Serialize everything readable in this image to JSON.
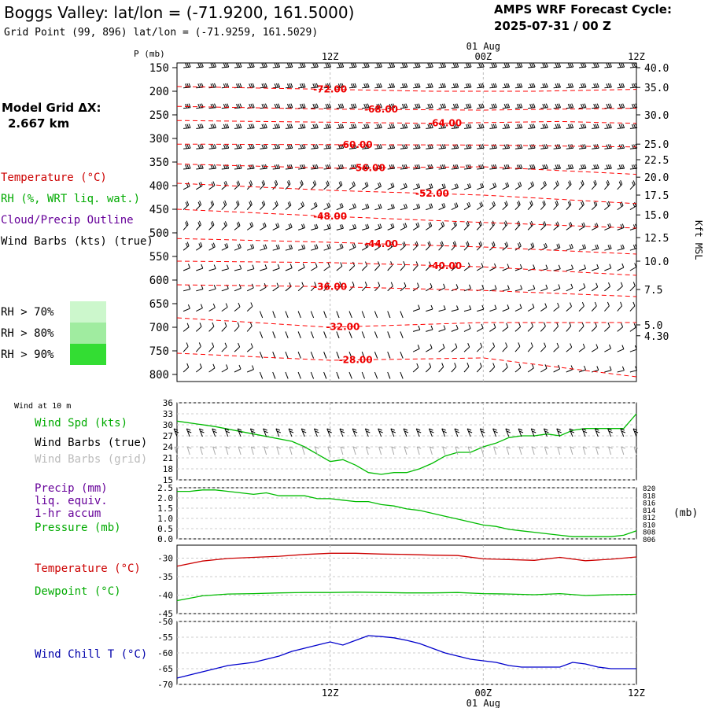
{
  "header": {
    "title": "Boggs Valley:  lat/lon = (-71.9200, 161.5000)",
    "subtitle": "Grid Point (99, 896) lat/lon = (-71.9259, 161.5029)",
    "cycle_label": "AMPS WRF Forecast Cycle:",
    "cycle_value": "2025-07-31 / 00  Z"
  },
  "left_labels": {
    "grid_title": "Model Grid ΔX:",
    "grid_value": "2.667 km",
    "temperature": "Temperature (°C)",
    "rh": "RH (%, WRT liq. wat.)",
    "cloud": "Cloud/Precip Outline",
    "wind": "Wind Barbs (kts) (true)",
    "rh70": "RH > 70%",
    "rh80": "RH > 80%",
    "rh90": "RH > 90%",
    "wind_at": "Wind at 10 m",
    "wind_spd": "Wind Spd (kts)",
    "barbs_true": "Wind Barbs (true)",
    "barbs_grid": "Wind Barbs (grid)",
    "precip1": "Precip (mm)",
    "precip2": "liq. equiv.",
    "precip3": "1-hr accum",
    "pressure": "Pressure (mb)",
    "temp2": "Temperature (°C)",
    "dewpoint": "Dewpoint (°C)",
    "windchill": "Wind Chill T (°C)",
    "p_unit": "P (mb)",
    "kft": "Kft MSL",
    "mb_unit": "(mb)"
  },
  "colors": {
    "temperature": "#ff0000",
    "rh": "#00bb00",
    "cloud": "#660099",
    "windchill": "#0000cc",
    "rh70": "#ccf7cc",
    "rh80": "#a0eca0",
    "rh90": "#33dd33",
    "grid": "#bbbbbb",
    "barb_grid": "#aaaaaa"
  },
  "chart_data": [
    {
      "type": "heatmap",
      "name": "pressure-time cross section",
      "time_ticks_top": [
        "12Z",
        "00Z",
        "12Z"
      ],
      "date_label_top": "01 Aug",
      "time_hours": [
        12,
        24,
        36
      ],
      "x_range_hours": [
        0,
        36
      ],
      "pressure_ticks": [
        150,
        200,
        250,
        300,
        350,
        400,
        450,
        500,
        550,
        600,
        650,
        700,
        750,
        800
      ],
      "ylim_mb": [
        815,
        140
      ],
      "height_ticks_kft": [
        "40.0",
        "35.0",
        "30.0",
        "25.0",
        "22.5",
        "20.0",
        "17.5",
        "15.0",
        "12.5",
        "10.0",
        "7.5",
        "5.0",
        "4.30"
      ],
      "height_tick_pressure": [
        150,
        192,
        250,
        312,
        345,
        382,
        420,
        462,
        510,
        560,
        620,
        695,
        718
      ],
      "isotherms": [
        {
          "label": "-72.00",
          "label_hour": 12,
          "points": [
            [
              0,
              190
            ],
            [
              10,
              195
            ],
            [
              20,
              200
            ],
            [
              28,
              200
            ],
            [
              36,
              196
            ]
          ]
        },
        {
          "label": "-68.00",
          "label_hour": 16,
          "points": [
            [
              0,
              232
            ],
            [
              12,
              238
            ],
            [
              24,
              240
            ],
            [
              36,
              236
            ]
          ]
        },
        {
          "label": "-64.00",
          "label_hour": 21,
          "points": [
            [
              0,
              262
            ],
            [
              10,
              265
            ],
            [
              20,
              268
            ],
            [
              30,
              264
            ],
            [
              36,
              268
            ]
          ]
        },
        {
          "label": "-60.00",
          "label_hour": 14,
          "points": [
            [
              0,
              312
            ],
            [
              12,
              313
            ],
            [
              24,
              314
            ],
            [
              36,
              318
            ]
          ]
        },
        {
          "label": "-56.00",
          "label_hour": 15,
          "points": [
            [
              0,
              354
            ],
            [
              12,
              363
            ],
            [
              24,
              360
            ],
            [
              36,
              376
            ]
          ]
        },
        {
          "label": "-52.00",
          "label_hour": 20,
          "points": [
            [
              0,
              395
            ],
            [
              12,
              410
            ],
            [
              24,
              420
            ],
            [
              36,
              438
            ]
          ]
        },
        {
          "label": "-48.00",
          "label_hour": 12,
          "points": [
            [
              0,
              450
            ],
            [
              12,
              465
            ],
            [
              24,
              478
            ],
            [
              36,
              490
            ]
          ]
        },
        {
          "label": "-44.00",
          "label_hour": 16,
          "points": [
            [
              0,
              512
            ],
            [
              12,
              520
            ],
            [
              24,
              530
            ],
            [
              36,
              545
            ]
          ]
        },
        {
          "label": "-40.00",
          "label_hour": 21,
          "points": [
            [
              0,
              560
            ],
            [
              12,
              563
            ],
            [
              24,
              572
            ],
            [
              36,
              590
            ]
          ]
        },
        {
          "label": "-36.00",
          "label_hour": 12,
          "points": [
            [
              0,
              610
            ],
            [
              12,
              614
            ],
            [
              24,
              622
            ],
            [
              36,
              635
            ]
          ]
        },
        {
          "label": "-32.00",
          "label_hour": 13,
          "points": [
            [
              0,
              680
            ],
            [
              12,
              700
            ],
            [
              24,
              690
            ],
            [
              36,
              690
            ]
          ]
        },
        {
          "label": "-28.00",
          "label_hour": 14,
          "points": [
            [
              0,
              755
            ],
            [
              12,
              770
            ],
            [
              24,
              765
            ],
            [
              36,
              805
            ]
          ]
        }
      ]
    },
    {
      "type": "line",
      "name": "10 m wind speed",
      "ylabel": "Wind Spd (kts)",
      "yticks": [
        15,
        18,
        21,
        24,
        27,
        30,
        33,
        36
      ],
      "ylim": [
        15,
        36
      ],
      "x_hours": [
        0,
        3,
        6,
        9,
        10,
        12,
        13,
        14,
        15,
        16,
        17,
        18,
        19,
        20,
        21,
        22,
        23,
        24,
        25,
        26,
        27,
        28,
        29,
        30,
        31,
        32,
        33,
        34,
        35,
        36
      ],
      "values": [
        31,
        29.5,
        27.5,
        25.5,
        24,
        20,
        20.5,
        19,
        17,
        16.5,
        17,
        17,
        18,
        19.5,
        21.5,
        22.5,
        22.5,
        24,
        25,
        26.5,
        27,
        27,
        27.5,
        27,
        28.5,
        29,
        29,
        29,
        29,
        33
      ]
    },
    {
      "type": "line",
      "name": "precip and pressure",
      "yticks": [
        "0.0",
        "0.5",
        "1.0",
        "1.5",
        "2.0",
        "2.5"
      ],
      "ylim": [
        0,
        2.5
      ],
      "pressure_ticks_right": [
        "820",
        "818",
        "816",
        "814",
        "812",
        "810",
        "808",
        "806"
      ],
      "pressure_range": [
        806,
        820
      ],
      "x_hours": [
        0,
        1,
        2,
        3,
        4,
        5,
        6,
        7,
        8,
        9,
        10,
        11,
        12,
        13,
        14,
        15,
        16,
        17,
        18,
        19,
        20,
        21,
        22,
        23,
        24,
        25,
        26,
        27,
        28,
        29,
        30,
        31,
        32,
        33,
        34,
        35,
        36
      ],
      "pressure_mb": [
        819.0,
        819.0,
        819.4,
        819.4,
        819.0,
        818.6,
        818.2,
        818.6,
        817.8,
        817.8,
        817.8,
        817.0,
        817.0,
        816.6,
        816.2,
        816.2,
        815.4,
        815.0,
        814.2,
        813.8,
        813.0,
        812.2,
        811.4,
        810.6,
        809.8,
        809.4,
        808.6,
        808.2,
        807.8,
        807.4,
        807.0,
        806.6,
        806.6,
        806.6,
        806.6,
        807.0,
        808.2
      ],
      "precip_mm": []
    },
    {
      "type": "line",
      "name": "temperature and dewpoint",
      "yticks": [
        -30,
        -35,
        -40,
        -45
      ],
      "ylim": [
        -45,
        -26.5
      ],
      "x_hours": [
        0,
        2,
        4,
        6,
        8,
        10,
        12,
        14,
        16,
        18,
        20,
        22,
        24,
        26,
        28,
        30,
        32,
        34,
        36
      ],
      "series": [
        {
          "name": "Temperature",
          "values": [
            -32.2,
            -30.8,
            -30.1,
            -29.8,
            -29.5,
            -29.0,
            -28.7,
            -28.7,
            -28.9,
            -29.0,
            -29.2,
            -29.3,
            -30.2,
            -30.4,
            -30.6,
            -29.8,
            -30.7,
            -30.3,
            -29.7
          ]
        },
        {
          "name": "Dewpoint",
          "values": [
            -41.5,
            -40.2,
            -39.7,
            -39.6,
            -39.4,
            -39.3,
            -39.3,
            -39.2,
            -39.3,
            -39.4,
            -39.4,
            -39.3,
            -39.6,
            -39.7,
            -39.9,
            -39.6,
            -40.1,
            -39.9,
            -39.8
          ]
        }
      ]
    },
    {
      "type": "line",
      "name": "wind chill",
      "ylabel": "Wind Chill T (°C)",
      "yticks": [
        -50,
        -55,
        -60,
        -65,
        -70
      ],
      "ylim": [
        -70,
        -50
      ],
      "x_hours": [
        0,
        1,
        2,
        3,
        4,
        5,
        6,
        7,
        8,
        9,
        10,
        11,
        12,
        13,
        14,
        15,
        16,
        17,
        18,
        19,
        20,
        21,
        22,
        23,
        24,
        25,
        26,
        27,
        28,
        29,
        30,
        31,
        32,
        33,
        34,
        35,
        36
      ],
      "values": [
        -68,
        -67,
        -66,
        -65,
        -64,
        -63.5,
        -63,
        -62,
        -61,
        -59.5,
        -58.5,
        -57.5,
        -56.5,
        -57.5,
        -56,
        -54.5,
        -54.8,
        -55.2,
        -56,
        -57,
        -58.5,
        -60,
        -61,
        -62,
        -62.5,
        -63,
        -64,
        -64.5,
        -64.5,
        -64.5,
        -64.5,
        -63,
        -63.5,
        -64.5,
        -65,
        -65,
        -65
      ],
      "time_ticks_bottom": [
        "12Z",
        "00Z",
        "12Z"
      ],
      "date_label_bottom": "01 Aug"
    }
  ]
}
